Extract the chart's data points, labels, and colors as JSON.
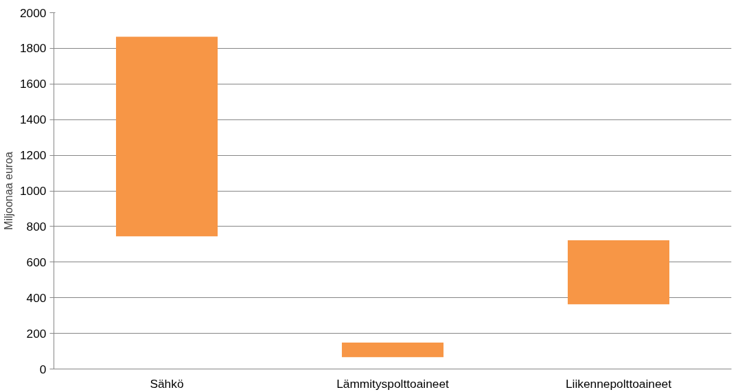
{
  "chart_data": {
    "type": "bar",
    "ylabel": "Miljoonaa euroa",
    "categories": [
      "Sähkö",
      "Lämmityspolttoaineet",
      "Liikennepolttoaineet"
    ],
    "base": [
      745,
      66,
      363
    ],
    "values": [
      1120,
      82,
      360
    ],
    "color": "#f79646",
    "ylim": [
      0,
      2000
    ],
    "yticks": [
      0,
      200,
      400,
      600,
      800,
      1000,
      1200,
      1400,
      1600,
      1800,
      2000
    ],
    "grid": "y"
  }
}
